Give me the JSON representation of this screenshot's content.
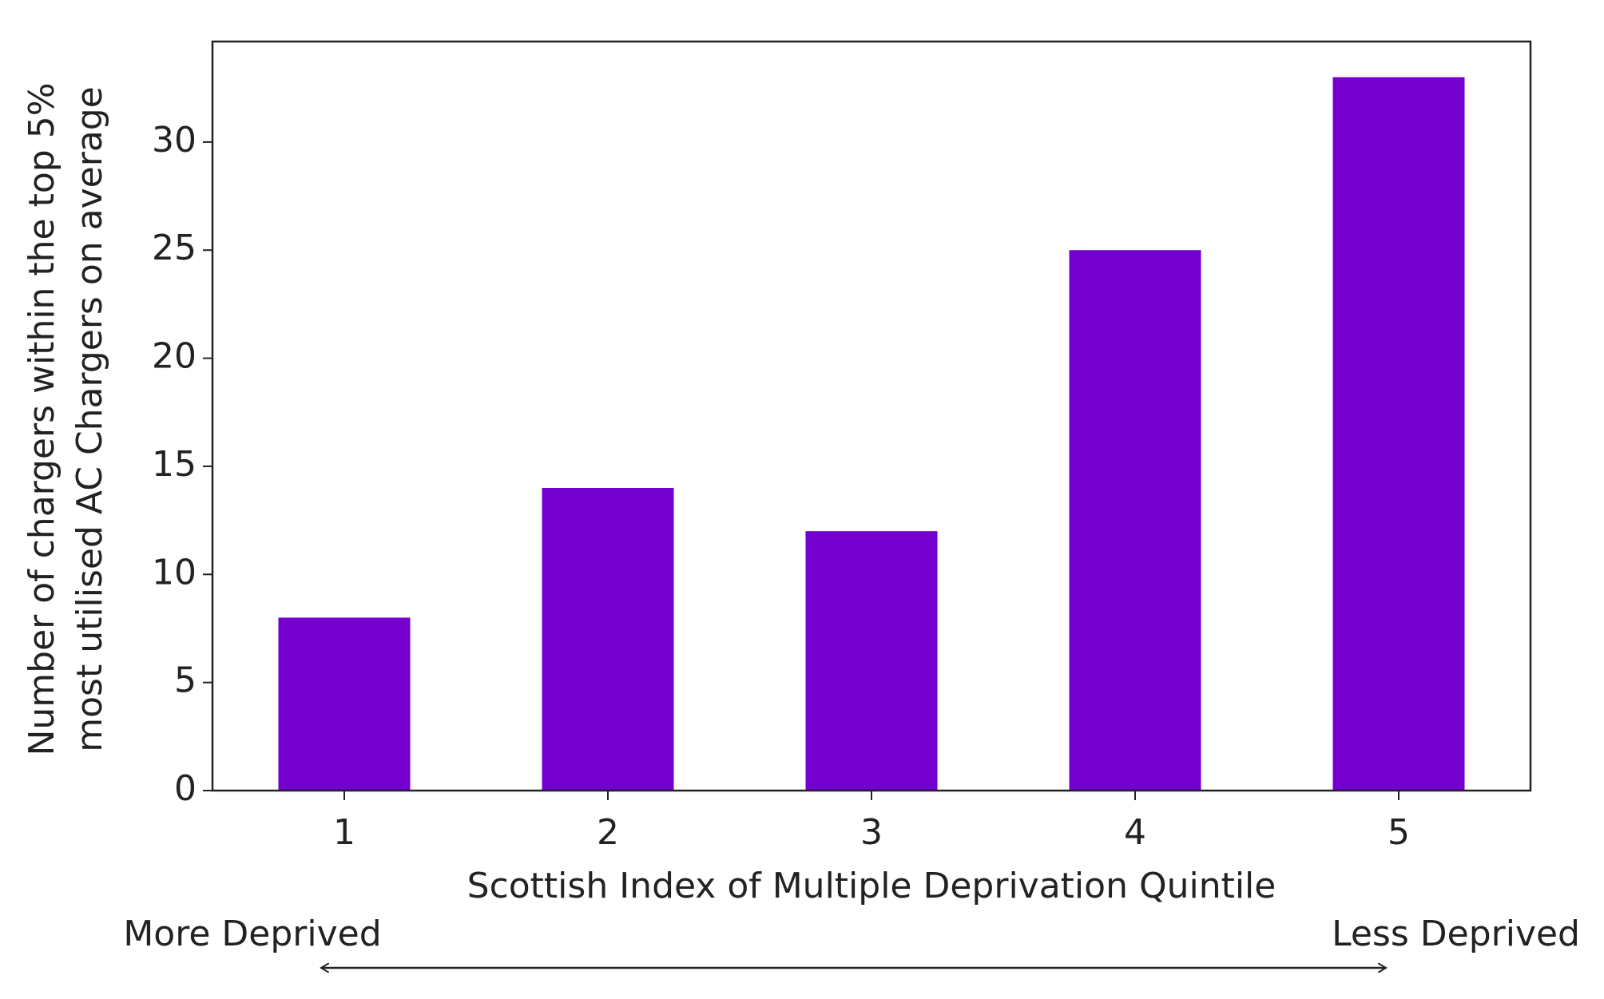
{
  "chart_data": {
    "type": "bar",
    "xlabel": "Scottish Index of Multiple Deprivation Quintile",
    "ylabel": [
      "Number of chargers within the top 5%",
      "most utilised AC Chargers on average"
    ],
    "annotations": [
      "More Deprived",
      "Less Deprived"
    ],
    "categories": [
      "1",
      "2",
      "3",
      "4",
      "5"
    ],
    "values": [
      8,
      14,
      12,
      25,
      33
    ],
    "color": "#7300cf",
    "ylim": [
      0,
      34.65
    ],
    "yticks": [
      0,
      5,
      10,
      15,
      20,
      25,
      30
    ],
    "grid": false
  }
}
